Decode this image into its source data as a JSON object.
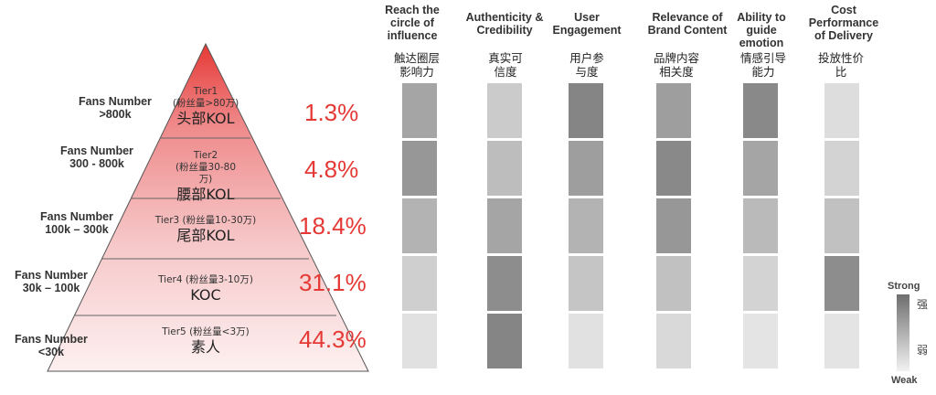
{
  "tiers": [
    {
      "fans": "Fans Number\n>800k",
      "tier": "Tier1",
      "sub": "(粉丝量>80万)",
      "name": "头部KOL",
      "pct": "1.3%"
    },
    {
      "fans": "Fans Number\n300 - 800k",
      "tier": "Tier2",
      "sub": "(粉丝量30-80\n万)",
      "name": "腰部KOL",
      "pct": "4.8%"
    },
    {
      "fans": "Fans Number\n100k – 300k",
      "tier": "Tier3",
      "sub": "(粉丝量10-30万)",
      "name": "尾部KOL",
      "pct": "18.4%"
    },
    {
      "fans": "Fans Number\n30k – 100k",
      "tier": "Tier4",
      "sub": "(粉丝量3-10万)",
      "name": "KOC",
      "pct": "31.1%"
    },
    {
      "fans": "Fans Number\n<30k",
      "tier": "Tier5",
      "sub": "(粉丝量<3万)",
      "name": "素人",
      "pct": "44.3%"
    }
  ],
  "columns": [
    {
      "en": "Reach the\ncircle of\ninfluence",
      "cn": "触达圈层\n影响力",
      "levels": [
        0.55,
        0.65,
        0.45,
        0.25,
        0.12
      ]
    },
    {
      "en": "Authenticity &\nCredibility",
      "cn": "真实可\n信度",
      "levels": [
        0.28,
        0.38,
        0.55,
        0.72,
        0.78
      ]
    },
    {
      "en": "User\nEngagement",
      "cn": "用户参\n与度",
      "levels": [
        0.78,
        0.6,
        0.45,
        0.32,
        0.12
      ]
    },
    {
      "en": "Relevance of\nBrand Content",
      "cn": "品牌内容\n相关度",
      "levels": [
        0.6,
        0.75,
        0.65,
        0.35,
        0.18
      ]
    },
    {
      "en": "Ability to\nguide\nemotion",
      "cn": "情感引导\n能力",
      "levels": [
        0.75,
        0.55,
        0.4,
        0.22,
        0.1
      ]
    },
    {
      "en": "Cost\nPerformance\nof Delivery",
      "cn": "投放性价\n比",
      "levels": [
        0.15,
        0.22,
        0.35,
        0.72,
        0.1
      ]
    }
  ],
  "legend": {
    "strong": "Strong",
    "weak": "Weak",
    "strong_cn": "强",
    "weak_cn": "弱"
  },
  "colors": {
    "red": "#e53935",
    "pyramid_top": "#e53935",
    "pyramid_bottom": "#fbe9ea"
  }
}
